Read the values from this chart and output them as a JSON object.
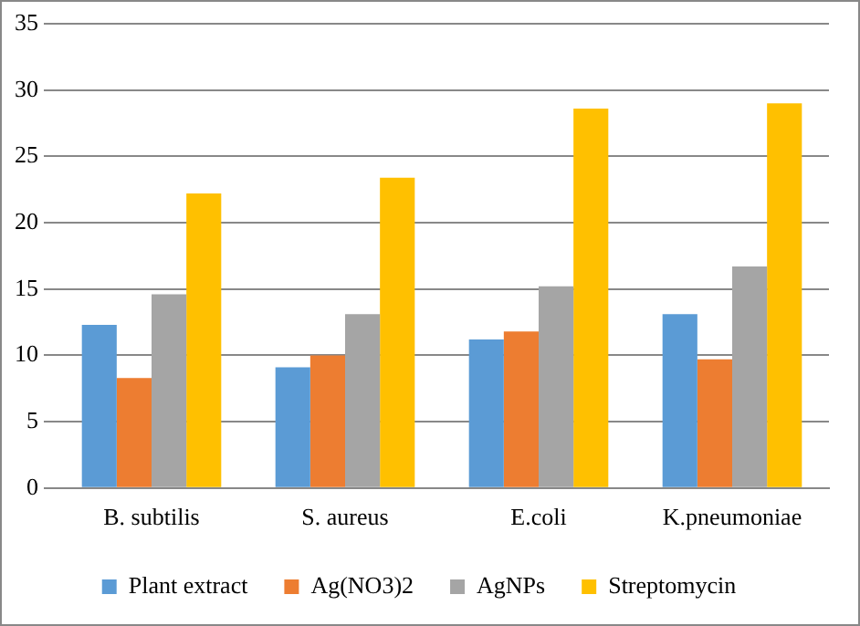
{
  "chart_data": {
    "type": "bar",
    "categories": [
      "B. subtilis",
      "S. aureus",
      "E.coli",
      "K.pneumoniae"
    ],
    "series": [
      {
        "name": "Plant extract",
        "color": "#5b9bd5",
        "values": [
          12.3,
          9.1,
          11.2,
          13.1
        ]
      },
      {
        "name": "Ag(NO3)2",
        "color": "#ed7d31",
        "values": [
          8.3,
          10.0,
          11.8,
          9.7
        ]
      },
      {
        "name": "AgNPs",
        "color": "#a5a5a5",
        "values": [
          14.6,
          13.1,
          15.2,
          16.7
        ]
      },
      {
        "name": "Streptomycin",
        "color": "#ffc000",
        "values": [
          22.2,
          23.4,
          28.6,
          29.0
        ]
      }
    ],
    "ylim": [
      0,
      35
    ],
    "yticks": [
      0,
      5,
      10,
      15,
      20,
      25,
      30,
      35
    ],
    "grid": "y",
    "legend": "bottom"
  }
}
